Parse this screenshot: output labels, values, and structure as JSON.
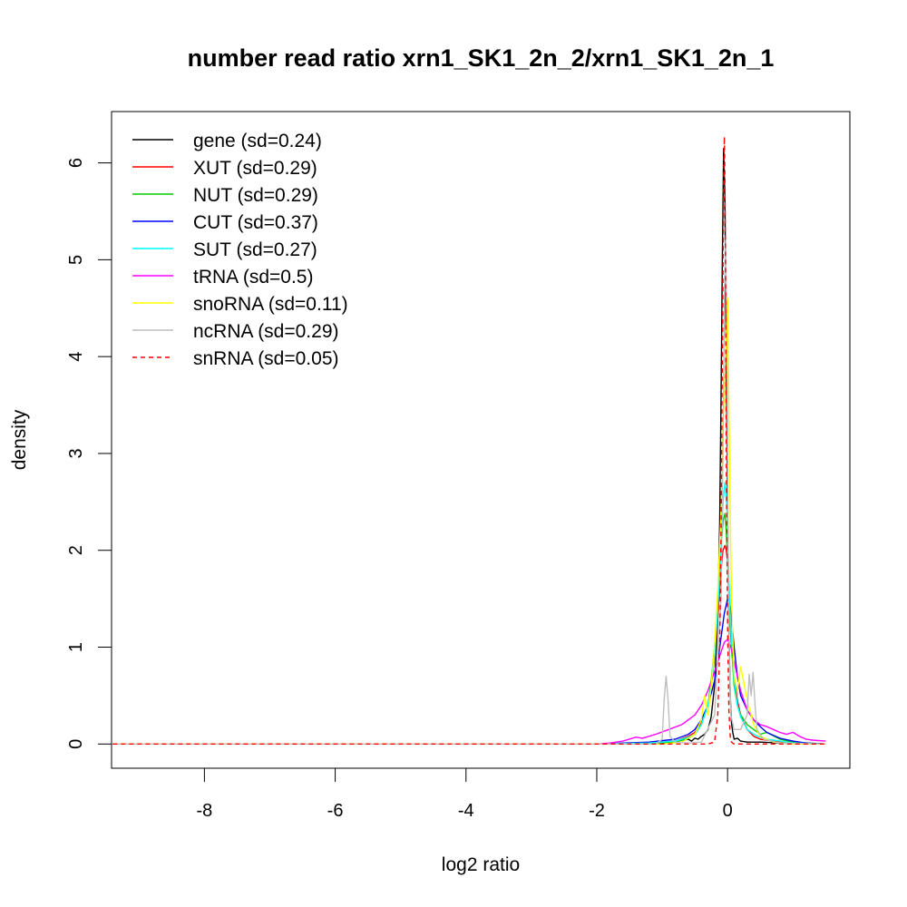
{
  "chart_data": {
    "type": "line",
    "title": "number read ratio xrn1_SK1_2n_2/xrn1_SK1_2n_1",
    "xlabel": "log2 ratio",
    "ylabel": "density",
    "xlim": [
      -9.42,
      1.87
    ],
    "ylim": [
      -0.25,
      6.53
    ],
    "x_ticks": [
      -8,
      -6,
      -4,
      -2,
      0
    ],
    "x_tick_labels": [
      "-8",
      "-6",
      "-4",
      "-2",
      "0"
    ],
    "y_ticks": [
      0,
      1,
      2,
      3,
      4,
      5,
      6
    ],
    "y_tick_labels": [
      "0",
      "1",
      "2",
      "3",
      "4",
      "5",
      "6"
    ],
    "grid": false,
    "legend_position": "top-left",
    "series": [
      {
        "name": "gene (sd=0.24)",
        "color": "#000000",
        "dash": "solid",
        "x": [
          -9.4,
          -2.0,
          -1.2,
          -0.8,
          -0.7,
          -0.6,
          -0.55,
          -0.5,
          -0.45,
          -0.4,
          -0.35,
          -0.3,
          -0.25,
          -0.2,
          -0.15,
          -0.12,
          -0.1,
          -0.08,
          -0.06,
          -0.04,
          -0.02,
          0.0,
          0.02,
          0.04,
          0.06,
          0.08,
          0.1,
          0.15,
          0.2,
          0.3,
          0.5,
          0.8,
          1.1,
          1.5
        ],
        "y": [
          0,
          0,
          0,
          0.02,
          0.04,
          0.05,
          0.03,
          0.06,
          0.05,
          0.08,
          0.1,
          0.15,
          0.28,
          0.6,
          1.3,
          2.3,
          3.6,
          5.0,
          6.15,
          5.6,
          4.0,
          2.4,
          1.2,
          0.5,
          0.22,
          0.12,
          0.05,
          0.06,
          0.03,
          0.02,
          0.02,
          0.01,
          0.0,
          0.0
        ]
      },
      {
        "name": "XUT (sd=0.29)",
        "color": "#ff0000",
        "dash": "solid",
        "x": [
          -9.4,
          -2.0,
          -1.2,
          -0.8,
          -0.6,
          -0.5,
          -0.4,
          -0.3,
          -0.25,
          -0.2,
          -0.15,
          -0.1,
          -0.07,
          -0.04,
          -0.02,
          0.0,
          0.02,
          0.05,
          0.1,
          0.15,
          0.2,
          0.3,
          0.4,
          0.5,
          0.7,
          1.0,
          1.5
        ],
        "y": [
          0,
          0,
          0.01,
          0.03,
          0.08,
          0.12,
          0.22,
          0.4,
          0.6,
          0.9,
          1.3,
          1.8,
          2.0,
          2.05,
          2.0,
          1.9,
          1.6,
          1.2,
          0.7,
          0.45,
          0.3,
          0.15,
          0.08,
          0.05,
          0.03,
          0.01,
          0.0
        ]
      },
      {
        "name": "NUT (sd=0.29)",
        "color": "#00cd00",
        "dash": "solid",
        "x": [
          -9.4,
          -2.0,
          -1.2,
          -0.8,
          -0.6,
          -0.5,
          -0.4,
          -0.3,
          -0.25,
          -0.2,
          -0.15,
          -0.1,
          -0.07,
          -0.04,
          -0.02,
          0.0,
          0.02,
          0.05,
          0.1,
          0.15,
          0.2,
          0.3,
          0.4,
          0.5,
          0.6,
          0.8,
          1.0,
          1.5
        ],
        "y": [
          0,
          0,
          0.01,
          0.02,
          0.06,
          0.1,
          0.2,
          0.4,
          0.65,
          1.0,
          1.5,
          2.0,
          2.3,
          2.38,
          2.2,
          1.9,
          1.5,
          1.1,
          0.6,
          0.4,
          0.3,
          0.2,
          0.15,
          0.1,
          0.12,
          0.05,
          0.02,
          0.0
        ]
      },
      {
        "name": "CUT (sd=0.37)",
        "color": "#0000ff",
        "dash": "solid",
        "x": [
          -9.4,
          -2.0,
          -1.2,
          -0.8,
          -0.6,
          -0.5,
          -0.4,
          -0.3,
          -0.2,
          -0.15,
          -0.1,
          -0.05,
          0.0,
          0.03,
          0.06,
          0.1,
          0.15,
          0.2,
          0.3,
          0.4,
          0.5,
          0.6,
          0.8,
          1.0,
          1.2,
          1.5
        ],
        "y": [
          0,
          0,
          0.02,
          0.05,
          0.1,
          0.15,
          0.25,
          0.4,
          0.65,
          0.85,
          1.1,
          1.35,
          1.5,
          1.48,
          1.3,
          1.0,
          0.7,
          0.5,
          0.35,
          0.25,
          0.18,
          0.12,
          0.06,
          0.03,
          0.01,
          0.0
        ]
      },
      {
        "name": "SUT (sd=0.27)",
        "color": "#00ffff",
        "dash": "solid",
        "x": [
          -9.4,
          -2.0,
          -1.2,
          -0.8,
          -0.6,
          -0.5,
          -0.4,
          -0.3,
          -0.25,
          -0.2,
          -0.15,
          -0.1,
          -0.07,
          -0.04,
          -0.02,
          0.0,
          0.02,
          0.05,
          0.1,
          0.15,
          0.2,
          0.3,
          0.4,
          0.5,
          0.6,
          0.8,
          1.0,
          1.5
        ],
        "y": [
          0,
          0,
          0.01,
          0.03,
          0.07,
          0.1,
          0.2,
          0.4,
          0.6,
          0.9,
          1.4,
          2.0,
          2.5,
          2.7,
          2.6,
          2.2,
          1.7,
          1.2,
          0.65,
          0.4,
          0.28,
          0.15,
          0.1,
          0.07,
          0.05,
          0.03,
          0.01,
          0.0
        ]
      },
      {
        "name": "tRNA (sd=0.5)",
        "color": "#ff00ff",
        "dash": "solid",
        "x": [
          -9.4,
          -2.0,
          -1.8,
          -1.6,
          -1.4,
          -1.3,
          -1.1,
          -0.9,
          -0.7,
          -0.5,
          -0.4,
          -0.3,
          -0.2,
          -0.1,
          -0.05,
          0.0,
          0.05,
          0.1,
          0.2,
          0.3,
          0.4,
          0.5,
          0.6,
          0.7,
          0.8,
          0.9,
          1.0,
          1.1,
          1.2,
          1.3,
          1.5
        ],
        "y": [
          0,
          0,
          0.01,
          0.03,
          0.07,
          0.06,
          0.1,
          0.15,
          0.2,
          0.3,
          0.4,
          0.55,
          0.75,
          0.95,
          1.05,
          1.08,
          1.0,
          0.85,
          0.55,
          0.35,
          0.25,
          0.2,
          0.18,
          0.15,
          0.12,
          0.1,
          0.12,
          0.08,
          0.05,
          0.04,
          0.03
        ]
      },
      {
        "name": "snoRNA (sd=0.11)",
        "color": "#ffff00",
        "dash": "solid",
        "x": [
          -9.4,
          -1.0,
          -0.7,
          -0.5,
          -0.4,
          -0.35,
          -0.3,
          -0.25,
          -0.2,
          -0.15,
          -0.1,
          -0.07,
          -0.05,
          -0.03,
          -0.01,
          0.0,
          0.02,
          0.04,
          0.06,
          0.1,
          0.15,
          0.2,
          0.3,
          0.4,
          0.5,
          0.7,
          1.0,
          1.5
        ],
        "y": [
          0,
          0,
          0.02,
          0.1,
          0.25,
          0.5,
          0.3,
          0.6,
          1.0,
          1.6,
          2.4,
          3.3,
          3.6,
          4.0,
          4.5,
          4.6,
          3.5,
          2.4,
          1.5,
          0.7,
          0.55,
          0.8,
          0.45,
          0.2,
          0.08,
          0.02,
          0.0,
          0.0
        ]
      },
      {
        "name": "ncRNA (sd=0.29)",
        "color": "#bebebe",
        "dash": "solid",
        "x": [
          -9.4,
          -1.1,
          -1.0,
          -0.97,
          -0.94,
          -0.91,
          -0.88,
          -0.8,
          -0.6,
          -0.4,
          -0.2,
          -0.1,
          -0.07,
          -0.05,
          -0.03,
          -0.01,
          0.0,
          0.01,
          0.03,
          0.05,
          0.1,
          0.2,
          0.3,
          0.33,
          0.36,
          0.39,
          0.42,
          0.45,
          0.55,
          0.8,
          1.5
        ],
        "y": [
          0,
          0,
          0.05,
          0.45,
          0.7,
          0.45,
          0.08,
          0.02,
          0.01,
          0.02,
          0.3,
          1.5,
          3.0,
          4.5,
          5.2,
          4.2,
          3.0,
          1.8,
          0.8,
          0.3,
          0.15,
          0.15,
          0.3,
          0.72,
          0.5,
          0.74,
          0.4,
          0.15,
          0.05,
          0.01,
          0.0
        ]
      },
      {
        "name": "snRNA (sd=0.05)",
        "color": "#ff0000",
        "dash": "dashed",
        "x": [
          -9.4,
          -0.3,
          -0.2,
          -0.15,
          -0.12,
          -0.1,
          -0.08,
          -0.06,
          -0.05,
          -0.04,
          -0.03,
          -0.02,
          0.0,
          0.02,
          0.04,
          0.06,
          0.1,
          0.15,
          1.5
        ],
        "y": [
          0,
          0,
          0.02,
          0.3,
          1.0,
          2.2,
          4.0,
          5.7,
          6.27,
          5.8,
          4.6,
          3.0,
          1.2,
          0.35,
          0.08,
          0.02,
          0.0,
          0.0,
          0.0
        ]
      }
    ]
  }
}
